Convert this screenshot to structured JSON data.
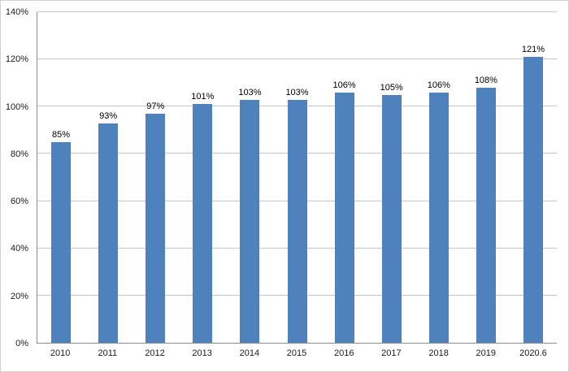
{
  "chart_data": {
    "type": "bar",
    "title": "",
    "xlabel": "",
    "ylabel": "",
    "categories": [
      "2010",
      "2011",
      "2012",
      "2013",
      "2014",
      "2015",
      "2016",
      "2017",
      "2018",
      "2019",
      "2020.6"
    ],
    "values": [
      85,
      93,
      97,
      101,
      103,
      103,
      106,
      105,
      106,
      108,
      121
    ],
    "data_labels": [
      "85%",
      "93%",
      "97%",
      "101%",
      "103%",
      "103%",
      "106%",
      "105%",
      "106%",
      "108%",
      "121%"
    ],
    "ylim": [
      0,
      140
    ],
    "ytick_step": 20,
    "ytick_labels": [
      "0%",
      "20%",
      "40%",
      "60%",
      "80%",
      "100%",
      "120%",
      "140%"
    ],
    "grid": true,
    "legend_position": "none",
    "bar_color": "#4f81bd",
    "gridline_color": "#c6c6c6",
    "axis_color": "#8c8c8c"
  }
}
